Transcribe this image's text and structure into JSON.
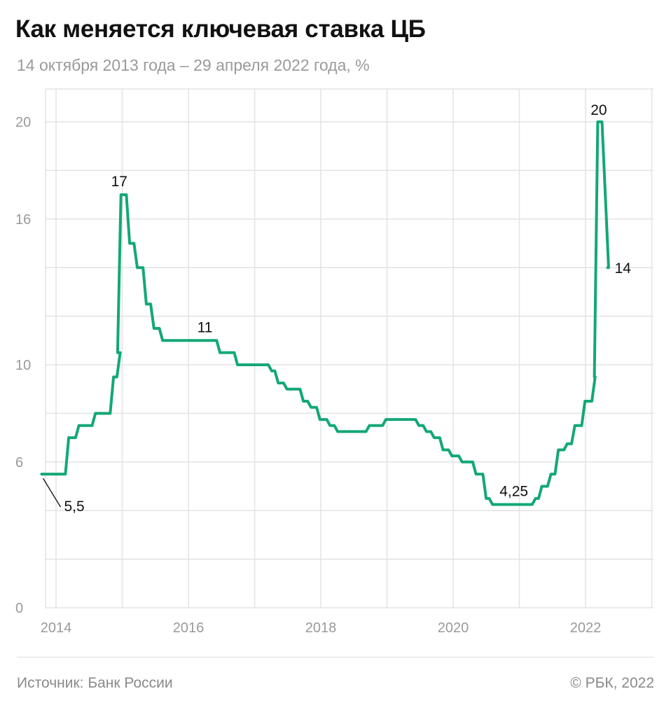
{
  "title": "Как меняется ключевая ставка ЦБ",
  "subtitle": "14 октября 2013 года – 29 апреля 2022 года, %",
  "footer": {
    "source": "Источник: Банк России",
    "copyright": "© РБК, 2022"
  },
  "colors": {
    "line": "#13a874",
    "grid": "#e3e3e3",
    "tick": "#9a9a9a"
  },
  "chart_data": {
    "type": "line",
    "title": "Как меняется ключевая ставка ЦБ",
    "subtitle": "14 октября 2013 года – 29 апреля 2022 года, %",
    "xlim": [
      "2013-10-14",
      "2022-12-31"
    ],
    "ylim": [
      0,
      21.4
    ],
    "x_ticks": [
      "2014",
      "2016",
      "2018",
      "2020",
      "2022"
    ],
    "y_ticks": [
      "0",
      "6",
      "10",
      "16",
      "20"
    ],
    "grid": true,
    "series": [
      {
        "color": "#13a874",
        "steps": [
          [
            "2013-10-14",
            5.5
          ],
          [
            "2014-03-03",
            7.0
          ],
          [
            "2014-04-28",
            7.5
          ],
          [
            "2014-07-28",
            8.0
          ],
          [
            "2014-11-05",
            9.5
          ],
          [
            "2014-12-12",
            10.5
          ],
          [
            "2014-12-16",
            17.0
          ],
          [
            "2015-02-02",
            15.0
          ],
          [
            "2015-03-16",
            14.0
          ],
          [
            "2015-05-05",
            12.5
          ],
          [
            "2015-06-16",
            11.5
          ],
          [
            "2015-08-03",
            11.0
          ],
          [
            "2016-06-14",
            10.5
          ],
          [
            "2016-09-19",
            10.0
          ],
          [
            "2017-03-27",
            9.75
          ],
          [
            "2017-05-02",
            9.25
          ],
          [
            "2017-06-19",
            9.0
          ],
          [
            "2017-09-18",
            8.5
          ],
          [
            "2017-10-30",
            8.25
          ],
          [
            "2017-12-18",
            7.75
          ],
          [
            "2018-02-12",
            7.5
          ],
          [
            "2018-03-26",
            7.25
          ],
          [
            "2018-09-17",
            7.5
          ],
          [
            "2018-12-17",
            7.75
          ],
          [
            "2019-06-17",
            7.5
          ],
          [
            "2019-07-29",
            7.25
          ],
          [
            "2019-09-09",
            7.0
          ],
          [
            "2019-10-28",
            6.5
          ],
          [
            "2019-12-16",
            6.25
          ],
          [
            "2020-02-10",
            6.0
          ],
          [
            "2020-04-27",
            5.5
          ],
          [
            "2020-06-22",
            4.5
          ],
          [
            "2020-07-27",
            4.25
          ],
          [
            "2021-03-22",
            4.5
          ],
          [
            "2021-04-26",
            5.0
          ],
          [
            "2021-06-15",
            5.5
          ],
          [
            "2021-07-26",
            6.5
          ],
          [
            "2021-09-13",
            6.75
          ],
          [
            "2021-10-25",
            7.5
          ],
          [
            "2021-12-20",
            8.5
          ],
          [
            "2022-02-14",
            9.5
          ],
          [
            "2022-02-28",
            20.0
          ],
          [
            "2022-04-11",
            17.0
          ],
          [
            "2022-04-29",
            14.0
          ]
        ],
        "end": "2022-05-03"
      }
    ],
    "annotations": [
      {
        "text": "5,5",
        "date": "2013-10-14",
        "value": 5.5
      },
      {
        "text": "17",
        "date": "2014-12-16",
        "value": 17
      },
      {
        "text": "11",
        "date": "2016-04-01",
        "value": 11
      },
      {
        "text": "4,25",
        "date": "2020-12-01",
        "value": 4.25
      },
      {
        "text": "20",
        "date": "2022-03-15",
        "value": 20
      },
      {
        "text": "14",
        "date": "2022-05-03",
        "value": 14
      }
    ]
  }
}
